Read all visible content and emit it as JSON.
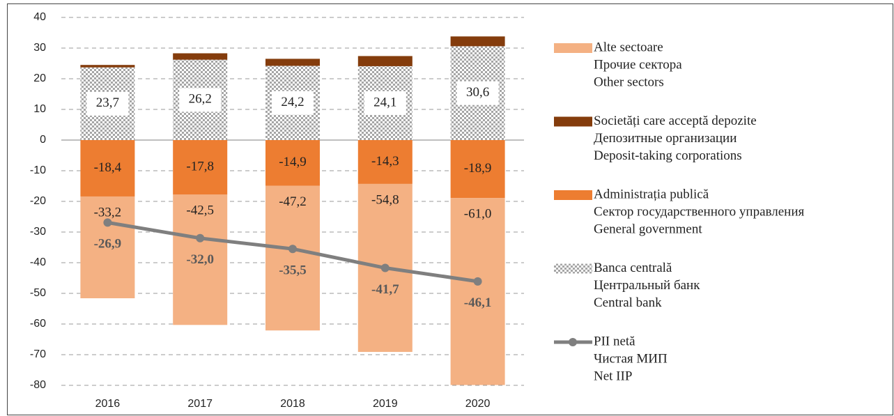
{
  "chart_data": {
    "type": "bar",
    "stacked": true,
    "categories": [
      "2016",
      "2017",
      "2018",
      "2019",
      "2020"
    ],
    "ylim": [
      -80,
      40
    ],
    "yticks": [
      -80,
      -70,
      -60,
      -50,
      -40,
      -30,
      -20,
      -10,
      0,
      10,
      20,
      30,
      40
    ],
    "grid": true,
    "series": [
      {
        "name": [
          "Alte sectoare",
          "Прочие сектора",
          "Other sectors"
        ],
        "color": "#f4b183",
        "values": [
          -33.2,
          -42.5,
          -47.2,
          -54.8,
          -61.0
        ],
        "value_labels": [
          "-33,2",
          "-42,5",
          "-47,2",
          "-54,8",
          "-61,0"
        ]
      },
      {
        "name": [
          "Societăți care acceptă depozite",
          "Депозитные организации",
          "Deposit-taking corporations"
        ],
        "color": "#843c0c",
        "values": [
          0.8,
          2.1,
          2.3,
          3.3,
          3.2
        ]
      },
      {
        "name": [
          "Administrația publică",
          "Сектор государственного управления",
          "General government"
        ],
        "color": "#ed7d31",
        "values": [
          -18.4,
          -17.8,
          -14.9,
          -14.3,
          -18.9
        ],
        "value_labels": [
          "-18,4",
          "-17,8",
          "-14,9",
          "-14,3",
          "-18,9"
        ]
      },
      {
        "name": [
          "Banca centrală",
          "Центральный банк",
          "Central bank"
        ],
        "color": "#a6a6a6",
        "pattern": "checker",
        "values": [
          23.7,
          26.2,
          24.2,
          24.1,
          30.6
        ],
        "value_labels": [
          "23,7",
          "26,2",
          "24,2",
          "24,1",
          "30,6"
        ]
      },
      {
        "name": [
          "PII netă",
          "Чистая МИП",
          "Net IIP"
        ],
        "color": "#7f7f7f",
        "type": "line",
        "values": [
          -26.9,
          -32.0,
          -35.5,
          -41.7,
          -46.1
        ],
        "value_labels": [
          "-26,9",
          "-32,0",
          "-35,5",
          "-41,7",
          "-46,1"
        ]
      }
    ]
  }
}
